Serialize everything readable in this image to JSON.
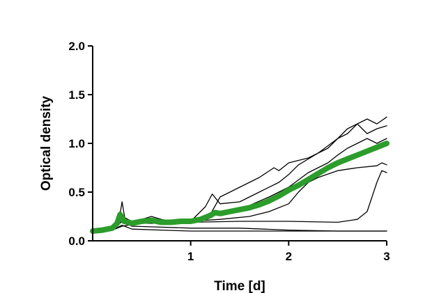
{
  "chart_data": {
    "type": "line",
    "xlabel": "Time [d]",
    "ylabel": "Optical density",
    "xlim": [
      0,
      3
    ],
    "ylim": [
      0,
      2
    ],
    "x_ticks": [
      1,
      2,
      3
    ],
    "x_tick_labels": [
      "1",
      "2",
      "3"
    ],
    "y_ticks": [
      0,
      0.5,
      1.0,
      1.5,
      2.0
    ],
    "y_tick_labels": [
      "0.0",
      "0.5",
      "1.0",
      "1.5",
      "2.0"
    ],
    "grid": false,
    "legend": "none",
    "colors": {
      "individual": "#000000",
      "mean": "#2a9d2a"
    },
    "series": [
      {
        "role": "individual",
        "x": [
          0,
          0.1,
          0.2,
          0.27,
          0.3,
          0.33,
          0.4,
          0.5,
          0.6,
          0.7,
          0.8,
          1.0,
          1.2,
          1.3,
          1.5,
          1.7,
          1.85,
          1.9,
          2.0,
          2.2,
          2.4,
          2.5,
          2.6,
          2.7,
          2.8,
          2.9,
          3.0
        ],
        "y": [
          0.1,
          0.11,
          0.13,
          0.22,
          0.4,
          0.22,
          0.2,
          0.22,
          0.25,
          0.22,
          0.2,
          0.2,
          0.27,
          0.45,
          0.55,
          0.65,
          0.75,
          0.72,
          0.8,
          0.85,
          0.95,
          1.05,
          1.1,
          1.2,
          1.25,
          1.2,
          1.27
        ]
      },
      {
        "role": "individual",
        "x": [
          0,
          0.1,
          0.2,
          0.28,
          0.32,
          0.4,
          0.5,
          0.7,
          1.0,
          1.15,
          1.22,
          1.3,
          1.5,
          1.7,
          1.9,
          2.0,
          2.1,
          2.3,
          2.5,
          2.6,
          2.7,
          2.8,
          2.9,
          3.0
        ],
        "y": [
          0.1,
          0.11,
          0.13,
          0.3,
          0.2,
          0.2,
          0.2,
          0.2,
          0.2,
          0.35,
          0.48,
          0.38,
          0.4,
          0.5,
          0.6,
          0.68,
          0.78,
          0.9,
          1.05,
          1.15,
          1.2,
          1.1,
          1.15,
          1.18
        ]
      },
      {
        "role": "individual",
        "x": [
          0,
          0.2,
          0.3,
          0.4,
          0.6,
          0.9,
          1.1,
          1.3,
          1.5,
          1.8,
          2.0,
          2.2,
          2.4,
          2.5,
          2.6,
          2.7,
          2.8,
          2.9,
          3.0
        ],
        "y": [
          0.1,
          0.12,
          0.25,
          0.2,
          0.2,
          0.2,
          0.22,
          0.28,
          0.32,
          0.45,
          0.55,
          0.7,
          0.8,
          0.88,
          0.95,
          1.0,
          1.05,
          1.0,
          1.05
        ]
      },
      {
        "role": "individual",
        "x": [
          0,
          0.2,
          0.3,
          0.5,
          0.7,
          1.0,
          1.3,
          1.6,
          1.8,
          2.0,
          2.1,
          2.2,
          2.3,
          2.5,
          2.7,
          2.9,
          2.95,
          3.0
        ],
        "y": [
          0.1,
          0.11,
          0.2,
          0.18,
          0.18,
          0.2,
          0.22,
          0.25,
          0.3,
          0.38,
          0.5,
          0.6,
          0.65,
          0.72,
          0.75,
          0.77,
          0.8,
          0.78
        ]
      },
      {
        "role": "individual",
        "x": [
          0,
          0.2,
          0.3,
          0.6,
          1.0,
          1.5,
          2.0,
          2.5,
          2.7,
          2.8,
          2.85,
          2.9,
          2.95,
          3.0
        ],
        "y": [
          0.1,
          0.11,
          0.15,
          0.2,
          0.19,
          0.2,
          0.2,
          0.19,
          0.22,
          0.3,
          0.45,
          0.6,
          0.72,
          0.7
        ]
      },
      {
        "role": "individual",
        "x": [
          0,
          0.2,
          0.3,
          0.4,
          0.7,
          1.0,
          1.5,
          2.0,
          2.5,
          3.0
        ],
        "y": [
          0.1,
          0.12,
          0.2,
          0.15,
          0.14,
          0.13,
          0.13,
          0.11,
          0.1,
          0.1
        ]
      },
      {
        "role": "individual",
        "x": [
          0,
          0.2,
          0.3,
          0.4,
          0.7,
          1.0,
          1.5,
          2.0,
          2.5,
          3.0
        ],
        "y": [
          0.1,
          0.11,
          0.16,
          0.12,
          0.11,
          0.1,
          0.1,
          0.1,
          0.1,
          0.1
        ]
      },
      {
        "role": "mean",
        "x": [
          0,
          0.1,
          0.2,
          0.25,
          0.28,
          0.32,
          0.4,
          0.5,
          0.6,
          0.7,
          0.8,
          0.9,
          1.0,
          1.1,
          1.2,
          1.25,
          1.3,
          1.4,
          1.5,
          1.6,
          1.7,
          1.8,
          1.9,
          2.0,
          2.1,
          2.2,
          2.3,
          2.4,
          2.5,
          2.6,
          2.7,
          2.8,
          2.9,
          3.0
        ],
        "y": [
          0.1,
          0.11,
          0.13,
          0.18,
          0.27,
          0.2,
          0.18,
          0.2,
          0.21,
          0.19,
          0.19,
          0.2,
          0.2,
          0.22,
          0.26,
          0.29,
          0.28,
          0.3,
          0.32,
          0.34,
          0.37,
          0.41,
          0.46,
          0.52,
          0.57,
          0.63,
          0.69,
          0.75,
          0.8,
          0.84,
          0.88,
          0.92,
          0.96,
          1.0
        ]
      }
    ]
  }
}
